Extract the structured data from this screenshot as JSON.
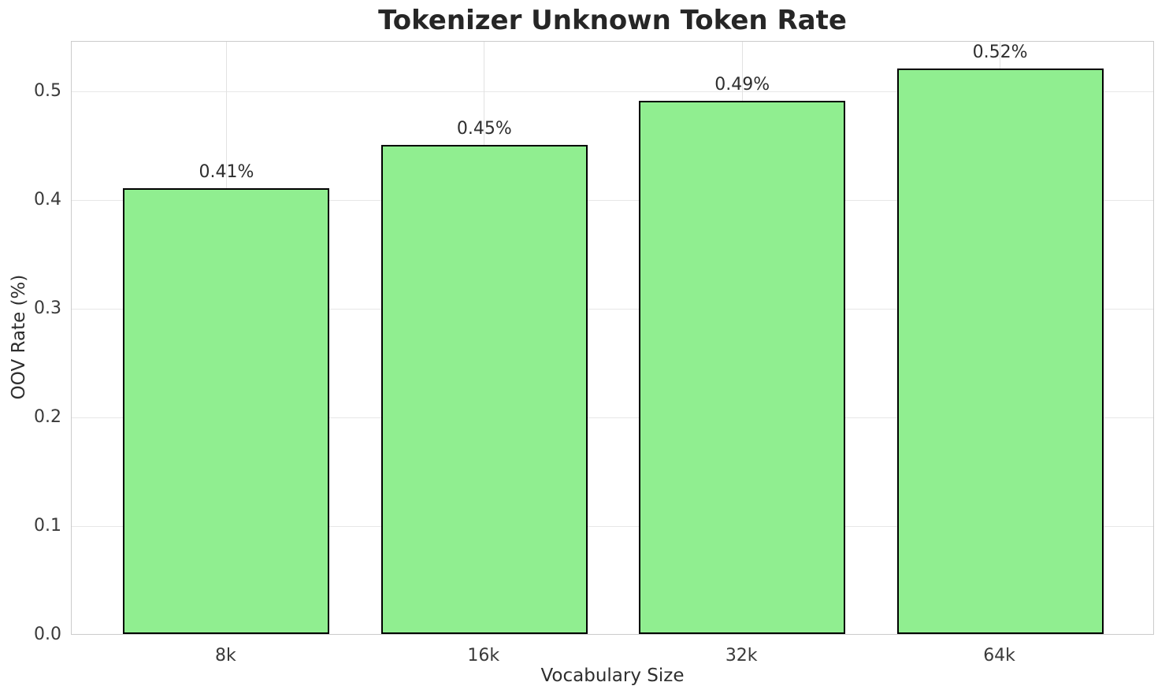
{
  "chart_data": {
    "type": "bar",
    "title": "Tokenizer Unknown Token Rate",
    "xlabel": "Vocabulary Size",
    "ylabel": "OOV Rate (%)",
    "categories": [
      "8k",
      "16k",
      "32k",
      "64k"
    ],
    "values": [
      0.41,
      0.45,
      0.49,
      0.52
    ],
    "bar_labels": [
      "0.41%",
      "0.45%",
      "0.49%",
      "0.52%"
    ],
    "yticks": [
      0.0,
      0.1,
      0.2,
      0.3,
      0.4,
      0.5
    ],
    "ytick_labels": [
      "0.0",
      "0.1",
      "0.2",
      "0.3",
      "0.4",
      "0.5"
    ],
    "ylim": [
      0,
      0.546
    ],
    "grid": true,
    "legend_position": "none",
    "colors": {
      "bar_fill": "#90EE90",
      "bar_edge": "#000000",
      "grid_line": "#e7e7e7",
      "spine": "#cbcbcb",
      "text": "#2e2e2e"
    }
  }
}
